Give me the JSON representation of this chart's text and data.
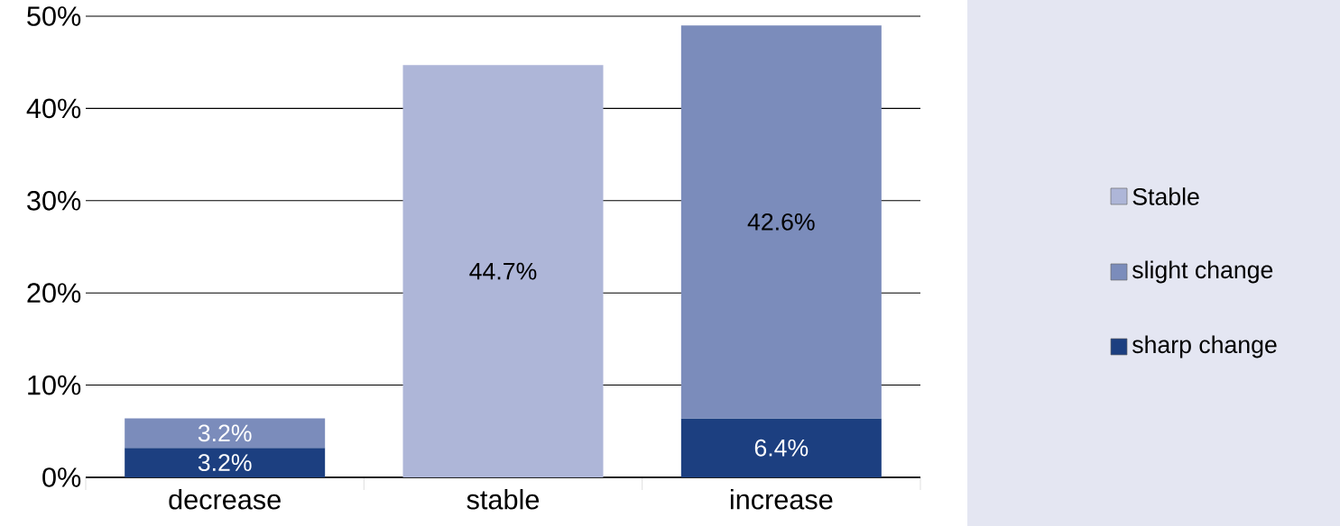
{
  "chart_data": {
    "type": "bar",
    "stacked": true,
    "categories": [
      "decrease",
      "stable",
      "increase"
    ],
    "series": [
      {
        "name": "sharp change",
        "color": "#1c3f80",
        "values": [
          3.2,
          null,
          6.4
        ],
        "value_labels": [
          "3.2%",
          null,
          "6.4%"
        ]
      },
      {
        "name": "slight change",
        "color": "#7b8cbb",
        "values": [
          3.2,
          null,
          42.6
        ],
        "value_labels": [
          "3.2%",
          null,
          "42.6%"
        ]
      },
      {
        "name": "Stable",
        "color": "#aeb6d8",
        "values": [
          null,
          44.7,
          null
        ],
        "value_labels": [
          null,
          "44.7%",
          null
        ]
      }
    ],
    "ylim": [
      0,
      50
    ],
    "yticks": [
      {
        "value": 0,
        "label": "0%"
      },
      {
        "value": 10,
        "label": "10%"
      },
      {
        "value": 20,
        "label": "20%"
      },
      {
        "value": 30,
        "label": "30%"
      },
      {
        "value": 40,
        "label": "40%"
      },
      {
        "value": 50,
        "label": "50%"
      }
    ],
    "grid": "y",
    "legend": "right"
  }
}
